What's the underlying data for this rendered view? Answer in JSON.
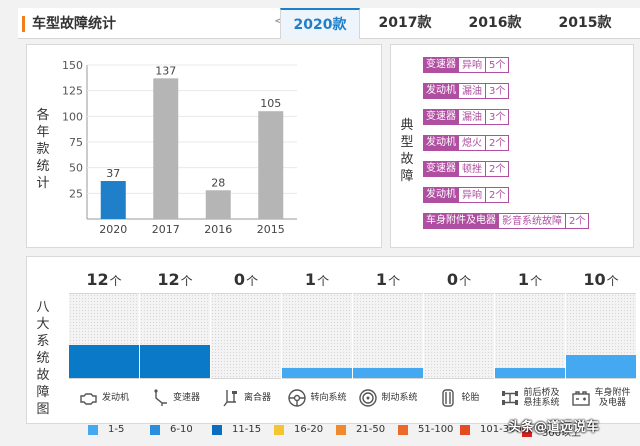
{
  "header": {
    "title": "车型故障统计",
    "prev_arrow": "<",
    "tabs": [
      {
        "label": "2020款",
        "active": true
      },
      {
        "label": "2017款",
        "active": false
      },
      {
        "label": "2016款",
        "active": false
      },
      {
        "label": "2015款",
        "active": false
      }
    ]
  },
  "yearly": {
    "side_label": [
      "各",
      "年",
      "款",
      "统",
      "计"
    ],
    "chart_data": {
      "type": "bar",
      "categories": [
        "2020",
        "2017",
        "2016",
        "2015"
      ],
      "values": [
        37,
        137,
        28,
        105
      ],
      "colors": [
        "#1f7fc8",
        "#b5b5b5",
        "#b5b5b5",
        "#b5b5b5"
      ],
      "yticks": [
        25,
        50,
        75,
        100,
        125,
        150
      ],
      "ylim": [
        0,
        150
      ],
      "grid": true
    }
  },
  "typical": {
    "side_label": [
      "典",
      "型",
      "故",
      "障"
    ],
    "faults": [
      {
        "system": "变速器",
        "type": "异响",
        "count": "5个"
      },
      {
        "system": "发动机",
        "type": "漏油",
        "count": "3个"
      },
      {
        "system": "变速器",
        "type": "漏油",
        "count": "3个"
      },
      {
        "system": "发动机",
        "type": "熄火",
        "count": "2个"
      },
      {
        "system": "变速器",
        "type": "顿挫",
        "count": "2个"
      },
      {
        "system": "发动机",
        "type": "异响",
        "count": "2个"
      },
      {
        "system": "车身附件及电器",
        "type": "影音系统故障",
        "count": "2个"
      }
    ],
    "tag_color": "#b04fa2"
  },
  "systems": {
    "side_label": [
      "八",
      "大",
      "系",
      "统",
      "故",
      "障",
      "图"
    ],
    "unit": "个",
    "items": [
      {
        "name": "发动机",
        "count": "12",
        "level": 0.39,
        "color": "#0a7ac8",
        "icon": "engine-icon"
      },
      {
        "name": "变速器",
        "count": "12",
        "level": 0.39,
        "color": "#0a7ac8",
        "icon": "gear-shift-icon"
      },
      {
        "name": "离合器",
        "count": "0",
        "level": 0,
        "color": "#44a9f0",
        "icon": "clutch-icon"
      },
      {
        "name": "转向系统",
        "count": "1",
        "level": 0.12,
        "color": "#44a9f0",
        "icon": "steering-wheel-icon"
      },
      {
        "name": "制动系统",
        "count": "1",
        "level": 0.12,
        "color": "#44a9f0",
        "icon": "brake-disc-icon"
      },
      {
        "name": "轮胎",
        "count": "0",
        "level": 0,
        "color": "#44a9f0",
        "icon": "tire-icon"
      },
      {
        "name": "前后桥及悬挂系统",
        "name_lines": [
          "前后桥及",
          "悬挂系统"
        ],
        "count": "1",
        "level": 0.12,
        "color": "#44a9f0",
        "icon": "axle-icon"
      },
      {
        "name": "车身附件及电器",
        "name_lines": [
          "车身附件",
          "及电器"
        ],
        "count": "10",
        "level": 0.27,
        "color": "#44a9f0",
        "icon": "car-battery-icon"
      }
    ]
  },
  "legend": [
    {
      "label": "1-5",
      "color": "#44a9f0"
    },
    {
      "label": "6-10",
      "color": "#2a8de0"
    },
    {
      "label": "11-15",
      "color": "#0a6fc0"
    },
    {
      "label": "16-20",
      "color": "#f5c431"
    },
    {
      "label": "21-50",
      "color": "#f0882e"
    },
    {
      "label": "51-100",
      "color": "#ec6a28"
    },
    {
      "label": "101-300",
      "color": "#e54b22"
    },
    {
      "label": "300以上",
      "color": "#d9231c"
    }
  ],
  "watermark": "头条@道远说车"
}
